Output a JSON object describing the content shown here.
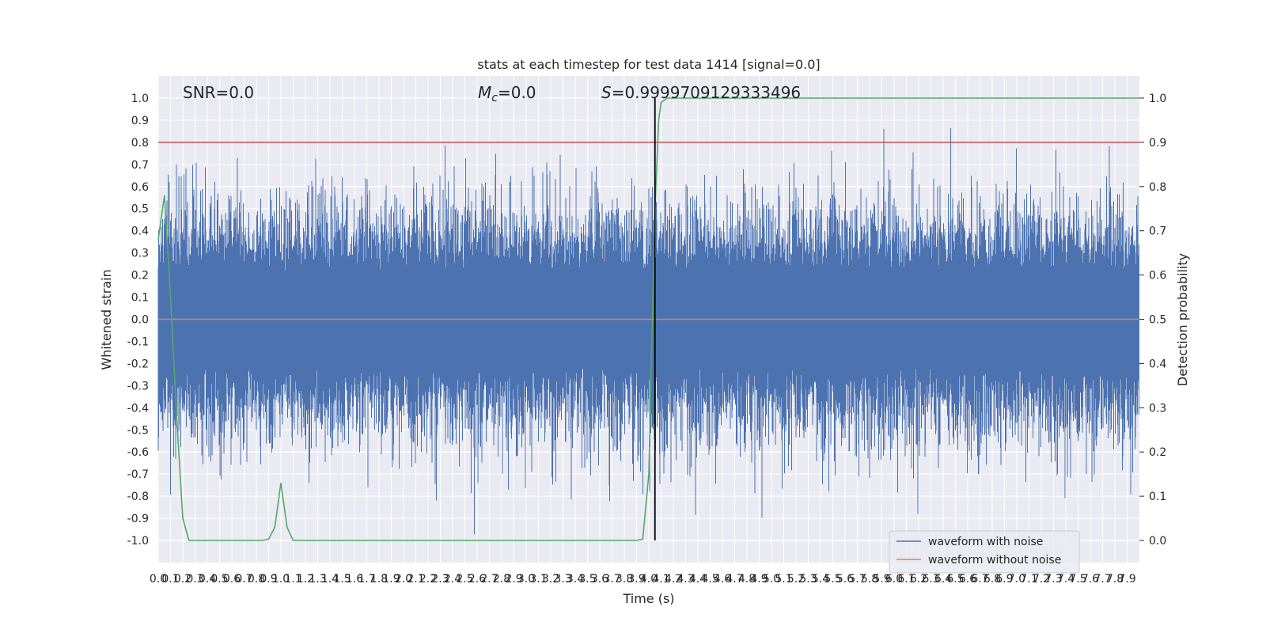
{
  "chart_data": {
    "type": "line",
    "title": "stats at each timestep for test data 1414 [signal=0.0]",
    "xlabel": "Time (s)",
    "ylabel": "Whitened strain",
    "ylabel_right": "Detection probability",
    "xlim": [
      0.0,
      8.0
    ],
    "ylim": [
      -1.1,
      1.1
    ],
    "ylim_right": [
      -0.05,
      1.05
    ],
    "x_ticks": [
      "0.0",
      "0.1",
      "0.2",
      "0.3",
      "0.4",
      "0.5",
      "0.6",
      "0.7",
      "0.8",
      "0.9",
      "1.0",
      "1.1",
      "1.2",
      "1.3",
      "1.4",
      "1.5",
      "1.6",
      "1.7",
      "1.8",
      "1.9",
      "2.0",
      "2.1",
      "2.2",
      "2.3",
      "2.4",
      "2.5",
      "2.6",
      "2.7",
      "2.8",
      "2.9",
      "3.0",
      "3.1",
      "3.2",
      "3.3",
      "3.4",
      "3.5",
      "3.6",
      "3.7",
      "3.8",
      "3.9",
      "4.0",
      "4.1",
      "4.2",
      "4.3",
      "4.4",
      "4.5",
      "4.6",
      "4.7",
      "4.8",
      "4.9",
      "5.0",
      "5.1",
      "5.2",
      "5.3",
      "5.4",
      "5.5",
      "5.6",
      "5.7",
      "5.8",
      "5.9",
      "6.0",
      "6.1",
      "6.2",
      "6.3",
      "6.4",
      "6.5",
      "6.6",
      "6.7",
      "6.8",
      "6.9",
      "7.0",
      "7.1",
      "7.2",
      "7.3",
      "7.4",
      "7.5",
      "7.6",
      "7.7",
      "7.8",
      "7.9"
    ],
    "y_ticks": [
      "1.0",
      "0.9",
      "0.8",
      "0.7",
      "0.6",
      "0.5",
      "0.4",
      "0.3",
      "0.2",
      "0.1",
      "0.0",
      "-0.1",
      "-0.2",
      "-0.3",
      "-0.4",
      "-0.5",
      "-0.6",
      "-0.7",
      "-0.8",
      "-0.9",
      "-1.0"
    ],
    "y_tick_values": [
      1.0,
      0.9,
      0.8,
      0.7,
      0.6,
      0.5,
      0.4,
      0.3,
      0.2,
      0.1,
      0.0,
      -0.1,
      -0.2,
      -0.3,
      -0.4,
      -0.5,
      -0.6,
      -0.7,
      -0.8,
      -0.9,
      -1.0
    ],
    "y_right_ticks": [
      "1.0",
      "0.9",
      "0.8",
      "0.7",
      "0.6",
      "0.5",
      "0.4",
      "0.3",
      "0.2",
      "0.1",
      "0.0"
    ],
    "y_right_tick_values": [
      1.0,
      0.9,
      0.8,
      0.7,
      0.6,
      0.5,
      0.4,
      0.3,
      0.2,
      0.1,
      0.0
    ],
    "annotations": {
      "snr": "SNR=0.0",
      "mc_symbol": "M",
      "mc_sub": "c",
      "mc_value": "=0.0",
      "s_symbol": "S",
      "s_value": "=0.9999709129333496"
    },
    "threshold": {
      "value": 0.9,
      "axis": "right",
      "color": "#c44e52"
    },
    "marker_time": 4.05,
    "series": [
      {
        "name": "waveform with noise",
        "color": "#4c72b0",
        "description_values": {
          "amplitude_range": [
            -1.0,
            0.98
          ],
          "band": [
            -0.22,
            0.22
          ]
        }
      },
      {
        "name": "waveform without noise",
        "color": "#dd8452",
        "value": 0.0
      }
    ],
    "probability_series": {
      "color": "#55a868",
      "x": [
        0.0,
        0.05,
        0.1,
        0.15,
        0.2,
        0.25,
        0.3,
        0.4,
        0.5,
        0.6,
        0.7,
        0.8,
        0.85,
        0.9,
        0.95,
        1.0,
        1.05,
        1.1,
        1.15,
        1.2,
        1.3,
        1.5,
        2.0,
        2.5,
        3.0,
        3.5,
        3.8,
        3.9,
        3.95,
        4.0,
        4.02,
        4.05,
        4.08,
        4.1,
        4.15,
        4.2,
        5.0,
        6.0,
        7.0,
        8.0
      ],
      "y": [
        0.68,
        0.78,
        0.55,
        0.28,
        0.05,
        0.0,
        0.0,
        0.0,
        0.0,
        0.0,
        0.0,
        0.0,
        0.0,
        0.003,
        0.03,
        0.13,
        0.03,
        0.0,
        0.0,
        0.0,
        0.0,
        0.0,
        0.0,
        0.0,
        0.0,
        0.0,
        0.0,
        0.0,
        0.003,
        0.15,
        0.4,
        0.75,
        0.95,
        0.99,
        1.0,
        1.0,
        1.0,
        1.0,
        1.0,
        1.0
      ]
    },
    "legend": {
      "placement": "lower-right",
      "entries": [
        "waveform with noise",
        "waveform without noise"
      ]
    },
    "grid": true,
    "colors": {
      "background": "#eaeaf2",
      "grid": "#ffffff",
      "noise": "#4c72b0",
      "clean": "#dd8452",
      "probability": "#55a868",
      "threshold": "#c44e52",
      "marker": "#000000"
    }
  }
}
